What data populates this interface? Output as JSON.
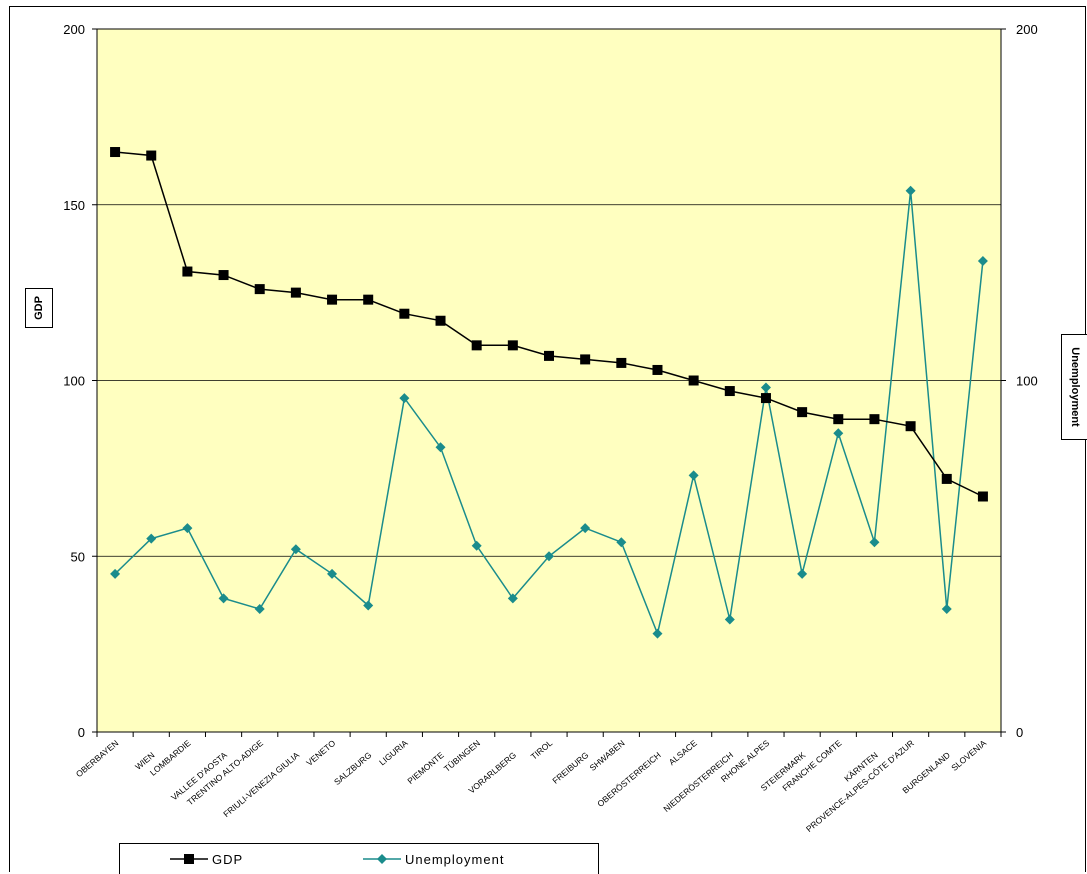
{
  "chart_data": {
    "type": "line",
    "title": "",
    "ylabel_left": "GDP",
    "ylabel_right": "Unemployment",
    "ylim_left": [
      0,
      200
    ],
    "ylim_right": [
      0,
      200
    ],
    "yticks_left": [
      "0",
      "50",
      "100",
      "150",
      "200"
    ],
    "yticks_right": [
      "0",
      "100",
      "200"
    ],
    "grid": "horizontal major gridlines",
    "plot_background": "#ffffc0",
    "legend_position": "bottom",
    "categories": [
      "OBERBAYEN",
      "WIEN",
      "LOMBARDIE",
      "VALLEE D'AOSTA",
      "TRENTINO ALTO-ADIGE",
      "FRIULI-VENEZIA GIULIA",
      "VENETO",
      "SALZBURG",
      "LIGURIA",
      "PIEMONTE",
      "TÜBINGEN",
      "VORARLBERG",
      "TIROL",
      "FREIBURG",
      "SHWABEN",
      "OBERÖSTERREICH",
      "ALSACE",
      "NIEDERÖSTERREICH",
      "RHONE ALPES",
      "STEIERMARK",
      "FRANCHE COMTE",
      "KÄRNTEN",
      "PROVENCE-ALPES-CÔTE D'AZUR",
      "BURGENLAND",
      "SLOVENIA"
    ],
    "series": [
      {
        "name": "GDP",
        "axis": "left",
        "color": "#000000",
        "marker": "square",
        "values": [
          165,
          164,
          131,
          130,
          126,
          125,
          123,
          123,
          119,
          117,
          110,
          110,
          107,
          106,
          105,
          103,
          100,
          97,
          95,
          91,
          89,
          89,
          87,
          72,
          67
        ]
      },
      {
        "name": "Unemployment",
        "axis": "right",
        "color": "#1a8c8c",
        "marker": "diamond",
        "values": [
          45,
          55,
          58,
          38,
          35,
          52,
          45,
          36,
          95,
          81,
          53,
          38,
          50,
          58,
          54,
          28,
          73,
          32,
          98,
          45,
          85,
          54,
          154,
          35,
          134
        ]
      }
    ]
  }
}
